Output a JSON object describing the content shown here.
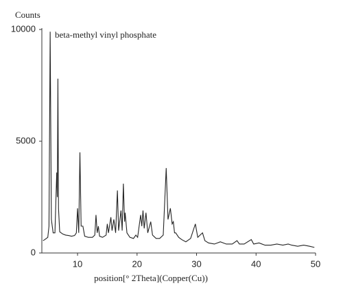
{
  "chart_data": {
    "type": "line",
    "y_axis_label": "Counts",
    "annotation": "beta-methyl vinyl phosphate",
    "x_axis_label": "position[° 2Theta](Copper(Cu))",
    "x": [
      4.2,
      4.5,
      5.0,
      5.2,
      5.4,
      5.6,
      5.9,
      6.2,
      6.5,
      6.6,
      6.7,
      6.8,
      7.0,
      7.5,
      8.0,
      8.5,
      9.0,
      9.5,
      9.8,
      10.0,
      10.2,
      10.4,
      10.6,
      10.9,
      11.2,
      11.8,
      12.5,
      12.9,
      13.1,
      13.3,
      13.5,
      13.7,
      14.2,
      14.8,
      15.0,
      15.2,
      15.6,
      15.8,
      16.1,
      16.4,
      16.7,
      16.9,
      17.3,
      17.5,
      17.7,
      17.9,
      18.0,
      18.3,
      18.8,
      19.4,
      19.8,
      20.1,
      20.6,
      20.8,
      21.0,
      21.2,
      21.5,
      21.8,
      22.3,
      22.6,
      23.2,
      23.8,
      24.4,
      24.9,
      25.2,
      25.6,
      25.9,
      26.1,
      26.3,
      26.5,
      27.0,
      27.5,
      28.2,
      29.0,
      29.8,
      30.2,
      31.0,
      31.4,
      32.0,
      33.0,
      34.0,
      35.0,
      36.0,
      36.8,
      37.2,
      38.0,
      39.2,
      39.6,
      40.5,
      41.5,
      42.5,
      43.5,
      44.5,
      45.4,
      46.0,
      47.0,
      48.0,
      49.0,
      49.8
    ],
    "series": [
      {
        "color": "#222222",
        "values": [
          550,
          600,
          700,
          1200,
          9900,
          1500,
          900,
          900,
          3600,
          2500,
          7800,
          2000,
          950,
          850,
          800,
          780,
          750,
          780,
          900,
          2000,
          900,
          4500,
          1200,
          1200,
          750,
          700,
          700,
          800,
          1700,
          900,
          1200,
          750,
          700,
          800,
          1300,
          900,
          1600,
          1000,
          1500,
          900,
          2800,
          1000,
          1900,
          1000,
          3100,
          1400,
          1800,
          900,
          700,
          650,
          800,
          700,
          1700,
          1200,
          1900,
          1100,
          1800,
          900,
          1400,
          800,
          650,
          650,
          800,
          3800,
          1500,
          2000,
          1300,
          1400,
          900,
          900,
          700,
          600,
          500,
          650,
          1300,
          700,
          900,
          550,
          450,
          400,
          500,
          400,
          400,
          550,
          400,
          400,
          600,
          400,
          450,
          350,
          350,
          400,
          350,
          400,
          350,
          300,
          350,
          300,
          250
        ]
      }
    ],
    "xlim": [
      4,
      50
    ],
    "xticks": [
      10,
      20,
      30,
      40,
      50
    ],
    "ylim": [
      0,
      10000
    ],
    "yticks": [
      0,
      5000,
      10000
    ],
    "grid": false
  }
}
